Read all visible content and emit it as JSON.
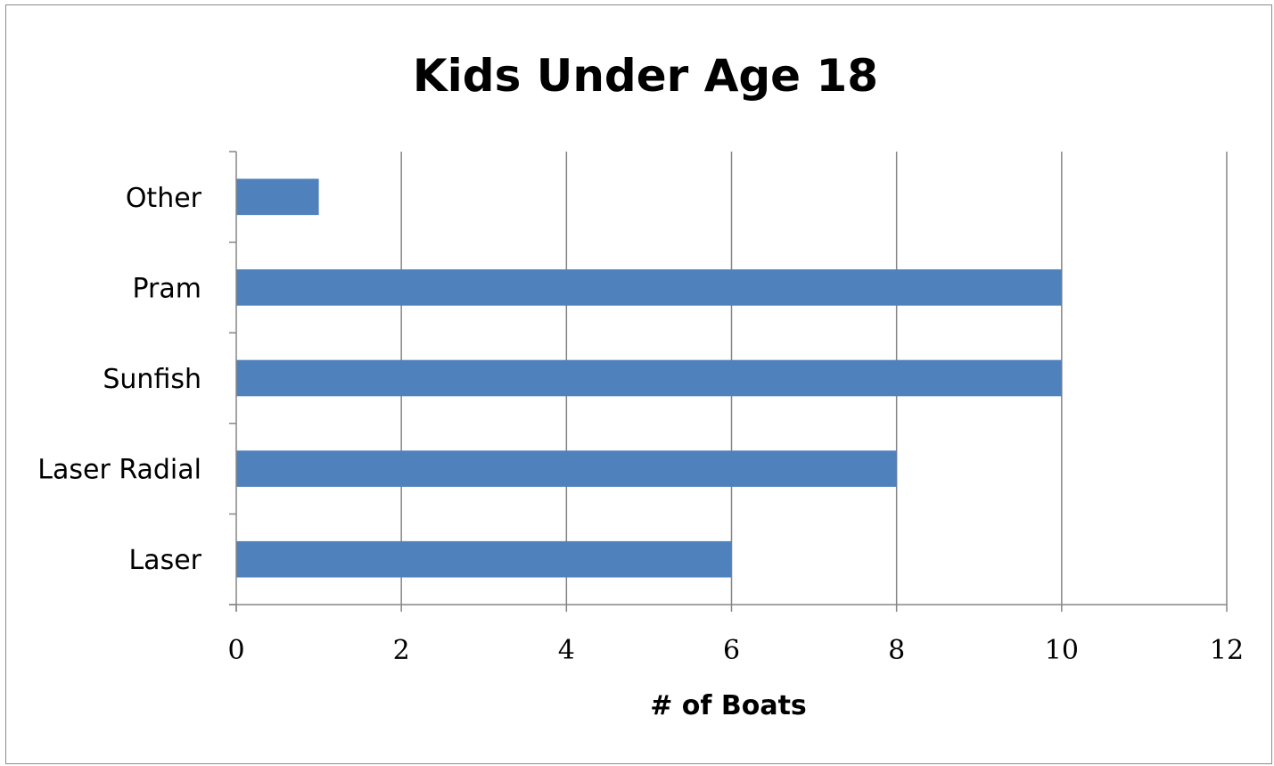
{
  "chart_data": {
    "type": "bar",
    "orientation": "horizontal",
    "title": "Kids Under Age 18",
    "xlabel": "# of Boats",
    "ylabel": "",
    "categories": [
      "Laser",
      "Laser Radial",
      "Sunfish",
      "Pram",
      "Other"
    ],
    "values": [
      6,
      8,
      10,
      10,
      1
    ],
    "xlim": [
      0,
      12
    ],
    "xticks": [
      0,
      2,
      4,
      6,
      8,
      10,
      12
    ],
    "grid": "vertical major gridlines",
    "legend": "none",
    "bar_color": "#4f81bd",
    "gridline_color": "#868686"
  }
}
